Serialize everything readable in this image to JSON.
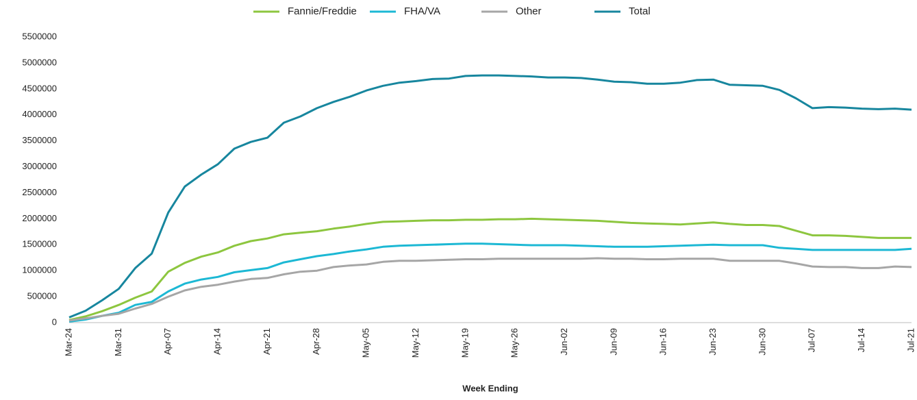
{
  "chart_data": {
    "type": "line",
    "x_label": "Week Ending",
    "categories": [
      "Mar-24",
      null,
      null,
      "Mar-31",
      null,
      null,
      "Apr-07",
      null,
      null,
      "Apr-14",
      null,
      null,
      "Apr-21",
      null,
      null,
      "Apr-28",
      null,
      null,
      "May-05",
      null,
      null,
      "May-12",
      null,
      null,
      "May-19",
      null,
      null,
      "May-26",
      null,
      null,
      "Jun-02",
      null,
      null,
      "Jun-09",
      null,
      null,
      "Jun-16",
      null,
      null,
      "Jun-23",
      null,
      null,
      "Jun-30",
      null,
      null,
      "Jul-07",
      null,
      null,
      "Jul-14",
      null,
      null,
      "Jul-21"
    ],
    "series": [
      {
        "name": "Fannie/Freddie",
        "color": "#8dc63f",
        "values": [
          50000,
          120000,
          220000,
          340000,
          480000,
          600000,
          980000,
          1150000,
          1270000,
          1350000,
          1480000,
          1570000,
          1620000,
          1700000,
          1730000,
          1760000,
          1810000,
          1850000,
          1900000,
          1940000,
          1950000,
          1960000,
          1970000,
          1970000,
          1980000,
          1980000,
          1990000,
          1990000,
          2000000,
          1990000,
          1980000,
          1970000,
          1960000,
          1940000,
          1920000,
          1910000,
          1900000,
          1890000,
          1910000,
          1930000,
          1900000,
          1880000,
          1880000,
          1860000,
          1770000,
          1680000,
          1680000,
          1670000,
          1650000,
          1630000,
          1630000,
          1630000
        ]
      },
      {
        "name": "FHA/VA",
        "color": "#1cb8d4",
        "values": [
          20000,
          60000,
          130000,
          190000,
          340000,
          400000,
          600000,
          750000,
          830000,
          880000,
          970000,
          1010000,
          1050000,
          1160000,
          1220000,
          1280000,
          1320000,
          1370000,
          1410000,
          1460000,
          1480000,
          1490000,
          1500000,
          1510000,
          1520000,
          1520000,
          1510000,
          1500000,
          1490000,
          1490000,
          1490000,
          1480000,
          1470000,
          1460000,
          1460000,
          1460000,
          1470000,
          1480000,
          1490000,
          1500000,
          1490000,
          1490000,
          1490000,
          1440000,
          1420000,
          1400000,
          1400000,
          1400000,
          1400000,
          1400000,
          1400000,
          1420000
        ]
      },
      {
        "name": "Other",
        "color": "#a6a6a6",
        "values": [
          40000,
          80000,
          130000,
          170000,
          270000,
          360000,
          500000,
          620000,
          690000,
          730000,
          790000,
          840000,
          860000,
          930000,
          980000,
          1000000,
          1070000,
          1100000,
          1120000,
          1170000,
          1190000,
          1190000,
          1200000,
          1210000,
          1220000,
          1220000,
          1230000,
          1230000,
          1230000,
          1230000,
          1230000,
          1230000,
          1240000,
          1230000,
          1230000,
          1220000,
          1220000,
          1230000,
          1230000,
          1230000,
          1190000,
          1190000,
          1190000,
          1190000,
          1140000,
          1080000,
          1070000,
          1070000,
          1050000,
          1050000,
          1080000,
          1070000
        ]
      },
      {
        "name": "Total",
        "color": "#17869e",
        "values": [
          100000,
          230000,
          430000,
          650000,
          1050000,
          1330000,
          2120000,
          2620000,
          2850000,
          3050000,
          3350000,
          3480000,
          3560000,
          3850000,
          3970000,
          4130000,
          4250000,
          4350000,
          4470000,
          4560000,
          4620000,
          4650000,
          4690000,
          4700000,
          4750000,
          4760000,
          4760000,
          4750000,
          4740000,
          4720000,
          4720000,
          4710000,
          4680000,
          4640000,
          4630000,
          4600000,
          4600000,
          4620000,
          4670000,
          4680000,
          4580000,
          4570000,
          4560000,
          4480000,
          4320000,
          4130000,
          4150000,
          4140000,
          4120000,
          4110000,
          4120000,
          4100000
        ]
      }
    ],
    "ylim": [
      0,
      5500000
    ],
    "yticks": [
      0,
      500000,
      1000000,
      1500000,
      2000000,
      2500000,
      3000000,
      3500000,
      4000000,
      4500000,
      5000000,
      5500000
    ],
    "legend": "top",
    "grid": false
  }
}
